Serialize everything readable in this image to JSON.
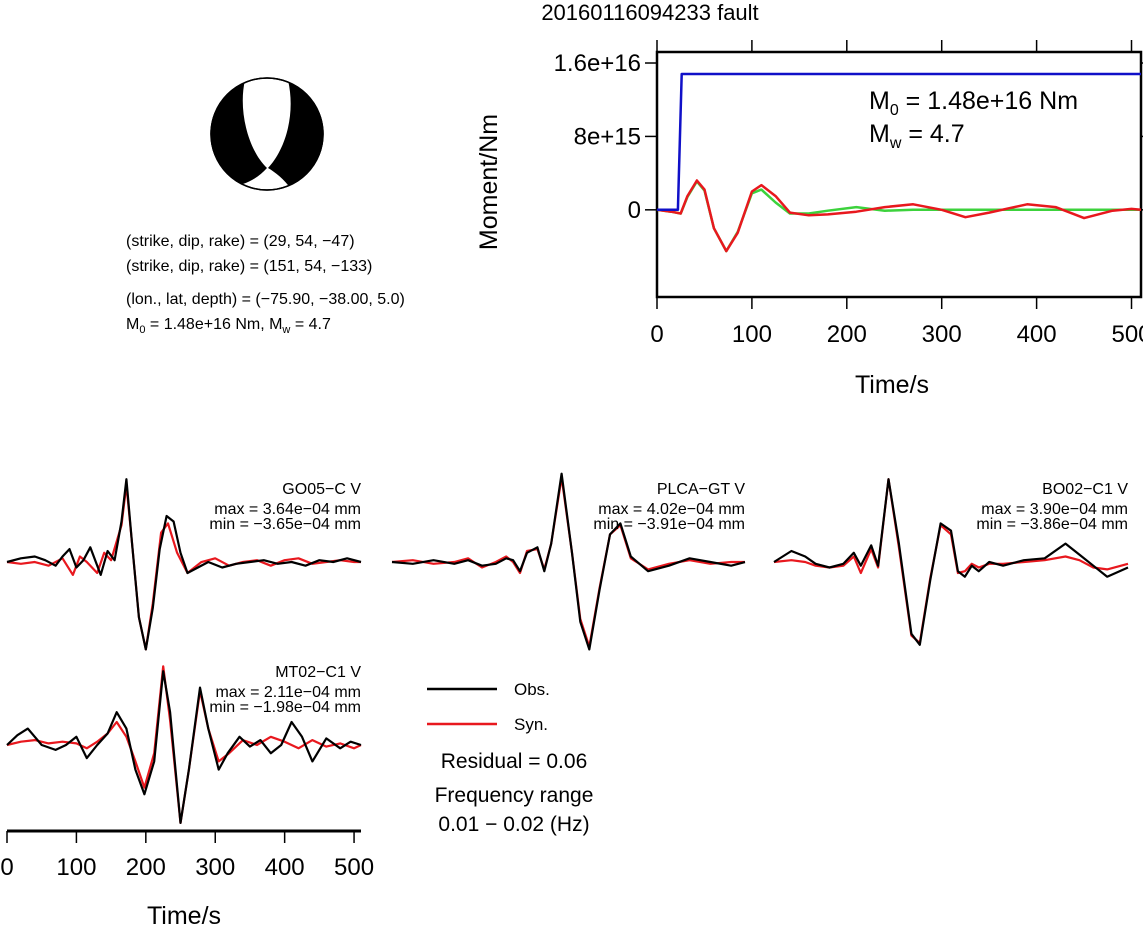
{
  "title": "20160116094233 fault",
  "mechanism": {
    "line1": "(strike, dip, rake) = (29, 54, −47)",
    "line2": "(strike, dip, rake) = (151, 54, −133)",
    "line3": "(lon., lat, depth) = (−75.90, −38.00, 5.0)",
    "line4_m0_prefix": "M",
    "line4_m0_sub": "0",
    "line4_mid": " = 1.48e+16 Nm, M",
    "line4_mw_sub": "w",
    "line4_end": " = 4.7"
  },
  "moment_chart": {
    "ylabel": "Moment/Nm",
    "xlabel": "Time/s",
    "m0_label": "M",
    "m0_sub": "0",
    "m0_value": " = 1.48e+16 Nm",
    "mw_label": "M",
    "mw_sub": "w",
    "mw_value": " = 4.7"
  },
  "waveforms": {
    "xlabel": "Time/s",
    "legend_obs": "Obs.",
    "legend_syn": "Syn.",
    "residual": "Residual = 0.06",
    "freq_title": "Frequency range",
    "freq_value": "0.01 − 0.02 (Hz)",
    "obs_color": "#000000",
    "syn_color": "#e8181e"
  },
  "chart_data": [
    {
      "type": "line",
      "panel": "moment-function",
      "xlabel": "Time/s",
      "ylabel": "Moment/Nm",
      "xlim": [
        0,
        510
      ],
      "ylim": [
        -9500000000000000.0,
        1.72e+16
      ],
      "xticks": [
        0,
        100,
        200,
        300,
        400,
        500
      ],
      "xtick_labels": [
        "0",
        "100",
        "200",
        "300",
        "400",
        "500"
      ],
      "yticks": [
        0,
        8000000000000000.0,
        1.6e+16
      ],
      "ytick_labels": [
        "0",
        "8e+15",
        "1.6e+16"
      ],
      "grid": false,
      "series": [
        {
          "color": "#1010c8",
          "x": [
            0,
            22,
            26,
            510
          ],
          "y": [
            0,
            0,
            1.48e+16,
            1.48e+16
          ]
        },
        {
          "color": "#e8181e",
          "x": [
            0,
            15,
            25,
            32,
            42,
            50,
            60,
            73,
            85,
            100,
            110,
            125,
            140,
            160,
            180,
            210,
            240,
            270,
            300,
            325,
            350,
            390,
            420,
            450,
            480,
            500,
            510
          ],
          "y": [
            0,
            -200000000000000.0,
            -400000000000000.0,
            1500000000000000.0,
            3200000000000000.0,
            2200000000000000.0,
            -2000000000000000.0,
            -4500000000000000.0,
            -2500000000000000.0,
            2000000000000000.0,
            2700000000000000.0,
            1500000000000000.0,
            -300000000000000.0,
            -600000000000000.0,
            -500000000000000.0,
            -200000000000000.0,
            300000000000000.0,
            600000000000000.0,
            0.0,
            -800000000000000.0,
            -300000000000000.0,
            600000000000000.0,
            300000000000000.0,
            -900000000000000.0,
            -100000000000000.0,
            100000000000000.0,
            0.0
          ]
        },
        {
          "color": "#3cd23c",
          "x": [
            0,
            15,
            25,
            32,
            42,
            50,
            60,
            73,
            85,
            100,
            110,
            125,
            140,
            160,
            180,
            210,
            240,
            270,
            300,
            350,
            400,
            450,
            510
          ],
          "y": [
            0,
            -200000000000000.0,
            -400000000000000.0,
            1400000000000000.0,
            3100000000000000.0,
            2100000000000000.0,
            -2000000000000000.0,
            -4500000000000000.0,
            -2400000000000000.0,
            1800000000000000.0,
            2200000000000000.0,
            800000000000000.0,
            -400000000000000.0,
            -400000000000000.0,
            -100000000000000.0,
            300000000000000.0,
            -100000000000000.0,
            0.0,
            0.0,
            0.0,
            0.0,
            0.0,
            0.0
          ]
        }
      ]
    },
    {
      "type": "line",
      "panel": "waveform",
      "station": "GO05−C V",
      "max_label": "max = 3.64e−04 mm",
      "min_label": "min = −3.65e−04 mm",
      "xlim": [
        0,
        510
      ],
      "ylim": [
        -1,
        1
      ],
      "series": [
        {
          "name": "Obs.",
          "x": [
            0,
            20,
            40,
            55,
            70,
            80,
            90,
            100,
            110,
            120,
            135,
            145,
            155,
            165,
            172,
            180,
            190,
            200,
            210,
            220,
            230,
            240,
            250,
            260,
            275,
            290,
            310,
            330,
            350,
            370,
            390,
            410,
            430,
            450,
            470,
            490,
            510
          ],
          "y": [
            0.0,
            0.04,
            0.06,
            0.02,
            -0.04,
            0.06,
            0.14,
            -0.06,
            0.02,
            0.16,
            -0.14,
            0.12,
            0.02,
            0.44,
            0.9,
            0.22,
            -0.6,
            -0.95,
            -0.5,
            0.14,
            0.5,
            0.44,
            0.1,
            -0.12,
            -0.06,
            0.0,
            -0.06,
            -0.02,
            0.0,
            0.02,
            -0.02,
            0.0,
            -0.04,
            0.02,
            0.0,
            0.04,
            0.0
          ]
        },
        {
          "name": "Syn.",
          "x": [
            0,
            20,
            40,
            60,
            80,
            95,
            105,
            115,
            130,
            140,
            150,
            165,
            172,
            180,
            190,
            200,
            210,
            222,
            232,
            245,
            260,
            280,
            300,
            320,
            340,
            360,
            380,
            400,
            420,
            440,
            460,
            480,
            500,
            510
          ],
          "y": [
            0.0,
            -0.02,
            0.0,
            -0.04,
            0.04,
            -0.14,
            0.06,
            0.0,
            -0.12,
            0.1,
            0.02,
            0.4,
            0.84,
            0.22,
            -0.6,
            -0.95,
            -0.45,
            0.32,
            0.42,
            0.1,
            -0.12,
            0.0,
            0.04,
            -0.04,
            0.0,
            0.02,
            -0.04,
            0.02,
            0.04,
            -0.02,
            0.0,
            0.02,
            0.0,
            0.0
          ]
        }
      ]
    },
    {
      "type": "line",
      "panel": "waveform",
      "station": "PLCA−GT V",
      "max_label": "max = 4.02e−04 mm",
      "min_label": "min = −3.91e−04 mm",
      "xlim": [
        0,
        510
      ],
      "ylim": [
        -1,
        1
      ],
      "series": [
        {
          "name": "Obs.",
          "x": [
            0,
            30,
            60,
            90,
            110,
            130,
            150,
            165,
            175,
            185,
            195,
            210,
            220,
            230,
            245,
            260,
            272,
            285,
            300,
            315,
            330,
            345,
            370,
            400,
            430,
            460,
            490,
            510
          ],
          "y": [
            0.0,
            -0.02,
            0.02,
            -0.02,
            0.02,
            -0.04,
            -0.02,
            0.04,
            0.02,
            -0.1,
            0.1,
            0.16,
            -0.1,
            0.2,
            0.96,
            0.1,
            -0.65,
            -0.95,
            -0.3,
            0.3,
            0.42,
            0.06,
            -0.1,
            -0.04,
            0.04,
            0.0,
            -0.04,
            0.0
          ]
        },
        {
          "name": "Syn.",
          "x": [
            0,
            30,
            60,
            90,
            110,
            130,
            150,
            165,
            175,
            185,
            195,
            210,
            220,
            230,
            245,
            260,
            272,
            285,
            300,
            315,
            330,
            345,
            370,
            400,
            430,
            460,
            490,
            510
          ],
          "y": [
            0.0,
            0.02,
            -0.02,
            0.0,
            0.04,
            -0.06,
            0.0,
            0.06,
            0.0,
            -0.12,
            0.12,
            0.14,
            -0.08,
            0.2,
            0.92,
            0.1,
            -0.62,
            -0.92,
            -0.28,
            0.3,
            0.4,
            0.04,
            -0.08,
            -0.02,
            0.02,
            -0.02,
            0.0,
            0.0
          ]
        }
      ]
    },
    {
      "type": "line",
      "panel": "waveform",
      "station": "BO02−C1 V",
      "max_label": "max = 3.90e−04 mm",
      "min_label": "min = −3.86e−04 mm",
      "xlim": [
        0,
        510
      ],
      "ylim": [
        -1,
        1
      ],
      "series": [
        {
          "name": "Obs.",
          "x": [
            0,
            25,
            45,
            60,
            80,
            100,
            115,
            125,
            140,
            150,
            165,
            180,
            198,
            210,
            225,
            240,
            255,
            265,
            275,
            285,
            295,
            310,
            330,
            360,
            390,
            420,
            440,
            460,
            480,
            510
          ],
          "y": [
            0.0,
            0.12,
            0.06,
            -0.02,
            -0.06,
            -0.02,
            0.1,
            -0.04,
            0.18,
            -0.04,
            0.9,
            0.2,
            -0.78,
            -0.9,
            -0.2,
            0.42,
            0.34,
            -0.1,
            -0.16,
            -0.04,
            -0.1,
            0.0,
            -0.04,
            0.02,
            0.04,
            0.2,
            0.08,
            -0.04,
            -0.16,
            -0.06
          ]
        },
        {
          "name": "Syn.",
          "x": [
            0,
            25,
            45,
            60,
            80,
            100,
            115,
            125,
            140,
            150,
            165,
            180,
            198,
            210,
            225,
            240,
            255,
            265,
            275,
            285,
            295,
            310,
            330,
            360,
            390,
            420,
            440,
            460,
            480,
            510
          ],
          "y": [
            0.0,
            0.02,
            0.0,
            -0.04,
            -0.06,
            -0.04,
            0.06,
            -0.12,
            0.14,
            -0.06,
            0.9,
            0.16,
            -0.8,
            -0.88,
            -0.18,
            0.4,
            0.3,
            -0.12,
            -0.1,
            -0.02,
            -0.06,
            -0.02,
            -0.02,
            0.0,
            0.02,
            0.06,
            0.02,
            -0.06,
            -0.08,
            -0.02
          ]
        }
      ]
    },
    {
      "type": "line",
      "panel": "waveform",
      "station": "MT02−C1 V",
      "max_label": "max = 2.11e−04 mm",
      "min_label": "min = −1.98e−04 mm",
      "xlim": [
        0,
        510
      ],
      "ylim": [
        -1,
        1
      ],
      "series": [
        {
          "name": "Obs.",
          "x": [
            0,
            15,
            30,
            50,
            70,
            85,
            100,
            115,
            130,
            145,
            158,
            172,
            185,
            198,
            212,
            225,
            235,
            250,
            262,
            278,
            290,
            305,
            318,
            335,
            350,
            365,
            380,
            395,
            410,
            425,
            440,
            460,
            480,
            495,
            510
          ],
          "y": [
            0.0,
            0.12,
            0.2,
            0.0,
            -0.06,
            0.0,
            0.1,
            -0.16,
            0.0,
            0.14,
            0.4,
            0.2,
            -0.3,
            -0.6,
            -0.2,
            0.9,
            0.4,
            -0.95,
            -0.3,
            0.7,
            0.2,
            -0.3,
            -0.1,
            0.1,
            -0.02,
            0.06,
            -0.1,
            0.0,
            0.28,
            0.1,
            -0.2,
            0.08,
            -0.04,
            0.04,
            0.0
          ]
        },
        {
          "name": "Syn.",
          "x": [
            0,
            20,
            40,
            60,
            80,
            100,
            115,
            130,
            145,
            158,
            172,
            185,
            198,
            212,
            225,
            235,
            250,
            262,
            278,
            290,
            305,
            320,
            340,
            360,
            380,
            400,
            420,
            440,
            460,
            480,
            500,
            510
          ],
          "y": [
            0.0,
            0.04,
            0.06,
            0.02,
            0.04,
            0.02,
            -0.04,
            0.04,
            0.14,
            0.28,
            0.1,
            -0.2,
            -0.52,
            -0.1,
            0.96,
            0.3,
            -0.95,
            -0.3,
            0.66,
            0.2,
            -0.2,
            -0.1,
            0.06,
            0.0,
            0.1,
            0.04,
            -0.04,
            0.06,
            -0.02,
            0.02,
            -0.04,
            0.0
          ]
        }
      ]
    }
  ]
}
